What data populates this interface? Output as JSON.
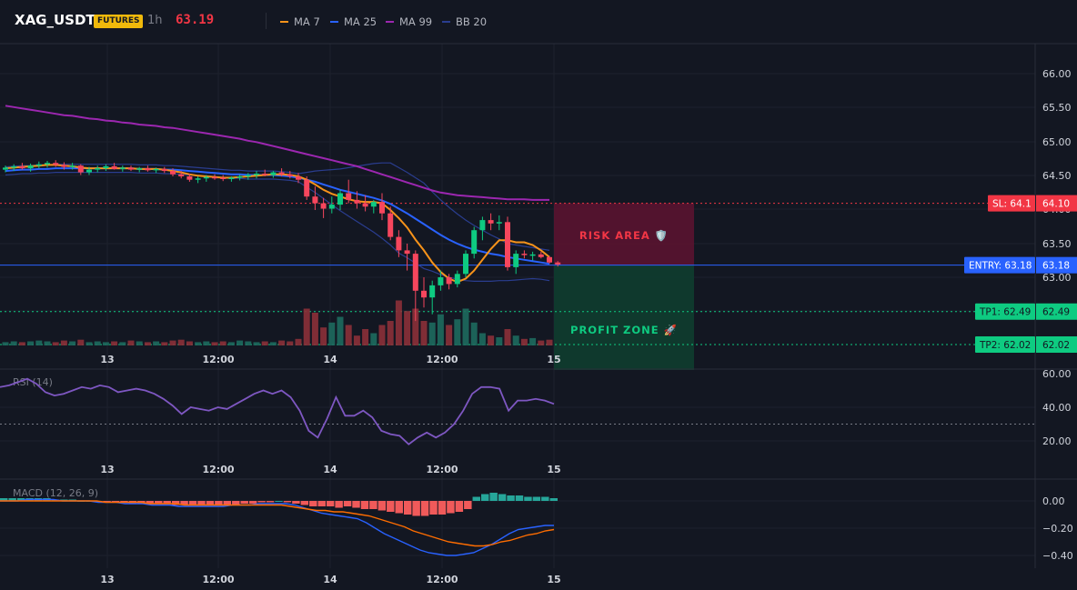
{
  "header": {
    "symbol": "XAG_USDT",
    "badge": "FUTURES",
    "interval": "1h",
    "price": "63.19"
  },
  "legend": [
    {
      "label": "MA 7",
      "color": "#f7931a"
    },
    {
      "label": "MA 25",
      "color": "#2962ff"
    },
    {
      "label": "MA 99",
      "color": "#9c27b0"
    },
    {
      "label": "BB 20",
      "color": "#2a3d8f"
    }
  ],
  "colors": {
    "up": "#26a69a",
    "down": "#ef5350",
    "candle_up": "#0ecb81",
    "candle_down": "#f6465d",
    "rsi": "#7e57c2",
    "macd": "#2962ff",
    "signal": "#ff6d00",
    "risk": "#f23645",
    "profit": "#089981"
  },
  "price_axis": [
    "66.00",
    "65.50",
    "65.00",
    "64.50",
    "64.00",
    "63.50",
    "63.00"
  ],
  "rsi_axis": [
    "60.00",
    "40.00",
    "20.00"
  ],
  "macd_axis": [
    "0.00",
    "−0.20",
    "−0.40"
  ],
  "time_axis": [
    "13",
    "12:00",
    "14",
    "12:00",
    "15"
  ],
  "indicators": {
    "rsi": "RSI (14)",
    "macd": "MACD (12, 26, 9)"
  },
  "zones": {
    "risk": "RISK AREA 🛡️",
    "profit": "PROFIT ZONE 🚀"
  },
  "levels": {
    "sl": {
      "label": "SL: 64.1",
      "price": "64.10",
      "value": 64.1
    },
    "entry": {
      "label": "ENTRY: 63.18",
      "price": "63.18",
      "value": 63.18
    },
    "tp1": {
      "label": "TP1: 62.49",
      "price": "62.49",
      "value": 62.49
    },
    "tp2": {
      "label": "TP2: 62.02",
      "price": "62.02",
      "value": 62.02
    }
  },
  "chart_data": {
    "type": "candlestick",
    "price_range": [
      62.0,
      66.2
    ],
    "candles": [
      {
        "o": 64.6,
        "h": 64.66,
        "l": 64.56,
        "c": 64.63
      },
      {
        "o": 64.63,
        "h": 64.68,
        "l": 64.58,
        "c": 64.65
      },
      {
        "o": 64.65,
        "h": 64.7,
        "l": 64.6,
        "c": 64.62
      },
      {
        "o": 64.62,
        "h": 64.69,
        "l": 64.57,
        "c": 64.66
      },
      {
        "o": 64.66,
        "h": 64.72,
        "l": 64.62,
        "c": 64.68
      },
      {
        "o": 64.68,
        "h": 64.73,
        "l": 64.63,
        "c": 64.7
      },
      {
        "o": 64.7,
        "h": 64.74,
        "l": 64.64,
        "c": 64.67
      },
      {
        "o": 64.67,
        "h": 64.71,
        "l": 64.6,
        "c": 64.64
      },
      {
        "o": 64.64,
        "h": 64.7,
        "l": 64.6,
        "c": 64.66
      },
      {
        "o": 64.66,
        "h": 64.68,
        "l": 64.52,
        "c": 64.56
      },
      {
        "o": 64.56,
        "h": 64.64,
        "l": 64.52,
        "c": 64.6
      },
      {
        "o": 64.6,
        "h": 64.66,
        "l": 64.56,
        "c": 64.62
      },
      {
        "o": 64.62,
        "h": 64.68,
        "l": 64.58,
        "c": 64.65
      },
      {
        "o": 64.65,
        "h": 64.7,
        "l": 64.6,
        "c": 64.61
      },
      {
        "o": 64.61,
        "h": 64.66,
        "l": 64.57,
        "c": 64.63
      },
      {
        "o": 64.63,
        "h": 64.66,
        "l": 64.58,
        "c": 64.6
      },
      {
        "o": 64.6,
        "h": 64.64,
        "l": 64.56,
        "c": 64.62
      },
      {
        "o": 64.62,
        "h": 64.66,
        "l": 64.57,
        "c": 64.59
      },
      {
        "o": 64.59,
        "h": 64.63,
        "l": 64.55,
        "c": 64.61
      },
      {
        "o": 64.61,
        "h": 64.64,
        "l": 64.55,
        "c": 64.58
      },
      {
        "o": 64.58,
        "h": 64.62,
        "l": 64.5,
        "c": 64.53
      },
      {
        "o": 64.53,
        "h": 64.58,
        "l": 64.47,
        "c": 64.5
      },
      {
        "o": 64.5,
        "h": 64.54,
        "l": 64.42,
        "c": 64.45
      },
      {
        "o": 64.45,
        "h": 64.5,
        "l": 64.4,
        "c": 64.47
      },
      {
        "o": 64.47,
        "h": 64.52,
        "l": 64.42,
        "c": 64.49
      },
      {
        "o": 64.49,
        "h": 64.53,
        "l": 64.45,
        "c": 64.48
      },
      {
        "o": 64.48,
        "h": 64.52,
        "l": 64.43,
        "c": 64.46
      },
      {
        "o": 64.46,
        "h": 64.5,
        "l": 64.42,
        "c": 64.48
      },
      {
        "o": 64.48,
        "h": 64.53,
        "l": 64.44,
        "c": 64.5
      },
      {
        "o": 64.5,
        "h": 64.55,
        "l": 64.45,
        "c": 64.52
      },
      {
        "o": 64.52,
        "h": 64.58,
        "l": 64.47,
        "c": 64.54
      },
      {
        "o": 64.54,
        "h": 64.6,
        "l": 64.5,
        "c": 64.52
      },
      {
        "o": 64.52,
        "h": 64.58,
        "l": 64.48,
        "c": 64.56
      },
      {
        "o": 64.56,
        "h": 64.62,
        "l": 64.5,
        "c": 64.53
      },
      {
        "o": 64.53,
        "h": 64.58,
        "l": 64.47,
        "c": 64.5
      },
      {
        "o": 64.5,
        "h": 64.55,
        "l": 64.4,
        "c": 64.45
      },
      {
        "o": 64.45,
        "h": 64.5,
        "l": 64.15,
        "c": 64.2
      },
      {
        "o": 64.2,
        "h": 64.35,
        "l": 64.0,
        "c": 64.1
      },
      {
        "o": 64.1,
        "h": 64.18,
        "l": 63.88,
        "c": 64.02
      },
      {
        "o": 64.02,
        "h": 64.2,
        "l": 63.95,
        "c": 64.08
      },
      {
        "o": 64.08,
        "h": 64.3,
        "l": 64.0,
        "c": 64.25
      },
      {
        "o": 64.25,
        "h": 64.45,
        "l": 64.1,
        "c": 64.15
      },
      {
        "o": 64.15,
        "h": 64.28,
        "l": 64.02,
        "c": 64.1
      },
      {
        "o": 64.1,
        "h": 64.22,
        "l": 63.98,
        "c": 64.05
      },
      {
        "o": 64.05,
        "h": 64.15,
        "l": 63.95,
        "c": 64.12
      },
      {
        "o": 64.12,
        "h": 64.25,
        "l": 63.85,
        "c": 63.95
      },
      {
        "o": 63.95,
        "h": 64.05,
        "l": 63.55,
        "c": 63.6
      },
      {
        "o": 63.6,
        "h": 63.7,
        "l": 63.3,
        "c": 63.4
      },
      {
        "o": 63.4,
        "h": 63.5,
        "l": 63.1,
        "c": 63.35
      },
      {
        "o": 63.35,
        "h": 63.4,
        "l": 62.35,
        "c": 62.8
      },
      {
        "o": 62.8,
        "h": 63.0,
        "l": 62.55,
        "c": 62.7
      },
      {
        "o": 62.7,
        "h": 62.95,
        "l": 62.45,
        "c": 62.88
      },
      {
        "o": 62.88,
        "h": 63.1,
        "l": 62.8,
        "c": 63.0
      },
      {
        "o": 63.0,
        "h": 63.05,
        "l": 62.82,
        "c": 62.9
      },
      {
        "o": 62.9,
        "h": 63.1,
        "l": 62.85,
        "c": 63.05
      },
      {
        "o": 63.05,
        "h": 63.4,
        "l": 63.0,
        "c": 63.35
      },
      {
        "o": 63.35,
        "h": 63.75,
        "l": 63.28,
        "c": 63.7
      },
      {
        "o": 63.7,
        "h": 63.9,
        "l": 63.55,
        "c": 63.85
      },
      {
        "o": 63.85,
        "h": 63.95,
        "l": 63.7,
        "c": 63.8
      },
      {
        "o": 63.8,
        "h": 63.92,
        "l": 63.7,
        "c": 63.82
      },
      {
        "o": 63.82,
        "h": 63.9,
        "l": 63.1,
        "c": 63.15
      },
      {
        "o": 63.15,
        "h": 63.4,
        "l": 63.05,
        "c": 63.35
      },
      {
        "o": 63.35,
        "h": 63.4,
        "l": 63.28,
        "c": 63.33
      },
      {
        "o": 63.33,
        "h": 63.38,
        "l": 63.25,
        "c": 63.34
      },
      {
        "o": 63.34,
        "h": 63.38,
        "l": 63.28,
        "c": 63.3
      },
      {
        "o": 63.3,
        "h": 63.32,
        "l": 63.2,
        "c": 63.22
      },
      {
        "o": 63.22,
        "h": 63.24,
        "l": 63.16,
        "c": 63.19
      }
    ],
    "volume": [
      4,
      5,
      4,
      5,
      6,
      5,
      4,
      6,
      5,
      7,
      4,
      5,
      4,
      5,
      4,
      6,
      5,
      4,
      5,
      4,
      6,
      7,
      5,
      4,
      5,
      4,
      5,
      4,
      6,
      5,
      4,
      5,
      4,
      6,
      5,
      8,
      45,
      40,
      22,
      28,
      35,
      25,
      12,
      20,
      15,
      25,
      30,
      55,
      42,
      45,
      30,
      28,
      38,
      25,
      32,
      45,
      28,
      15,
      12,
      10,
      20,
      12,
      8,
      9,
      6,
      7
    ],
    "ma7": [
      64.62,
      64.63,
      64.64,
      64.65,
      64.66,
      64.67,
      64.67,
      64.66,
      64.65,
      64.63,
      64.62,
      64.62,
      64.62,
      64.62,
      64.62,
      64.62,
      64.61,
      64.61,
      64.61,
      64.6,
      64.58,
      64.56,
      64.53,
      64.51,
      64.5,
      64.49,
      64.48,
      64.48,
      64.49,
      64.5,
      64.51,
      64.52,
      64.53,
      64.53,
      64.52,
      64.5,
      64.45,
      64.38,
      64.3,
      64.24,
      64.2,
      64.16,
      64.13,
      64.12,
      64.12,
      64.1,
      64.0,
      63.88,
      63.74,
      63.56,
      63.4,
      63.22,
      63.08,
      62.98,
      62.93,
      62.98,
      63.1,
      63.26,
      63.42,
      63.55,
      63.55,
      63.52,
      63.52,
      63.48,
      63.4,
      63.3
    ],
    "ma25": [
      64.58,
      64.59,
      64.6,
      64.6,
      64.61,
      64.61,
      64.62,
      64.62,
      64.62,
      64.62,
      64.62,
      64.62,
      64.62,
      64.62,
      64.62,
      64.62,
      64.61,
      64.61,
      64.61,
      64.6,
      64.6,
      64.59,
      64.58,
      64.57,
      64.56,
      64.55,
      64.54,
      64.53,
      64.53,
      64.52,
      64.52,
      64.52,
      64.52,
      64.51,
      64.5,
      64.48,
      64.45,
      64.42,
      64.38,
      64.34,
      64.3,
      64.27,
      64.24,
      64.21,
      64.18,
      64.14,
      64.09,
      64.02,
      63.95,
      63.87,
      63.79,
      63.71,
      63.63,
      63.56,
      63.5,
      63.45,
      63.41,
      63.38,
      63.35,
      63.33,
      63.3,
      63.28,
      63.26,
      63.24,
      63.22,
      63.2
    ],
    "ma99": [
      65.55,
      65.53,
      65.51,
      65.49,
      65.47,
      65.45,
      65.43,
      65.41,
      65.4,
      65.38,
      65.36,
      65.35,
      65.33,
      65.32,
      65.3,
      65.29,
      65.27,
      65.26,
      65.25,
      65.23,
      65.22,
      65.2,
      65.18,
      65.16,
      65.14,
      65.12,
      65.1,
      65.08,
      65.06,
      65.03,
      65.01,
      64.98,
      64.95,
      64.92,
      64.89,
      64.86,
      64.83,
      64.8,
      64.77,
      64.74,
      64.71,
      64.68,
      64.65,
      64.61,
      64.57,
      64.53,
      64.49,
      64.45,
      64.41,
      64.37,
      64.33,
      64.29,
      64.26,
      64.24,
      64.22,
      64.21,
      64.2,
      64.19,
      64.18,
      64.17,
      64.16,
      64.16,
      64.16,
      64.15,
      64.15,
      64.15
    ]
  },
  "rsi_data": [
    52,
    53,
    55,
    57,
    54,
    49,
    47,
    48,
    50,
    52,
    51,
    53,
    52,
    49,
    50,
    51,
    50,
    48,
    45,
    41,
    36,
    40,
    39,
    38,
    40,
    39,
    42,
    45,
    48,
    50,
    48,
    50,
    46,
    38,
    26,
    22,
    33,
    46,
    35,
    35,
    38,
    34,
    26,
    24,
    23,
    18,
    22,
    25,
    22,
    25,
    30,
    38,
    48,
    52,
    52,
    51,
    38,
    44,
    44,
    45,
    44,
    42
  ],
  "macd_data": {
    "hist": [
      0.02,
      0.02,
      0.02,
      0.02,
      0.02,
      0.02,
      0.01,
      0.01,
      0.01,
      0.0,
      0.0,
      -0.01,
      -0.01,
      -0.01,
      -0.01,
      -0.02,
      -0.02,
      -0.02,
      -0.02,
      -0.02,
      -0.03,
      -0.03,
      -0.03,
      -0.03,
      -0.03,
      -0.03,
      -0.03,
      -0.03,
      -0.02,
      -0.02,
      -0.01,
      -0.01,
      0.0,
      -0.01,
      -0.02,
      -0.03,
      -0.04,
      -0.04,
      -0.04,
      -0.05,
      -0.04,
      -0.05,
      -0.06,
      -0.06,
      -0.07,
      -0.08,
      -0.09,
      -0.1,
      -0.11,
      -0.11,
      -0.1,
      -0.1,
      -0.09,
      -0.08,
      -0.06,
      0.03,
      0.05,
      0.06,
      0.05,
      0.04,
      0.04,
      0.03,
      0.03,
      0.03,
      0.02
    ],
    "macd": [
      0.0,
      0.0,
      0.0,
      0.01,
      0.01,
      0.01,
      0.01,
      0.0,
      0.0,
      0.0,
      0.0,
      -0.01,
      -0.01,
      -0.01,
      -0.02,
      -0.02,
      -0.02,
      -0.03,
      -0.03,
      -0.03,
      -0.04,
      -0.04,
      -0.04,
      -0.04,
      -0.04,
      -0.04,
      -0.03,
      -0.03,
      -0.03,
      -0.02,
      -0.02,
      -0.02,
      -0.02,
      -0.03,
      -0.05,
      -0.07,
      -0.09,
      -0.1,
      -0.11,
      -0.12,
      -0.13,
      -0.16,
      -0.2,
      -0.24,
      -0.27,
      -0.3,
      -0.33,
      -0.36,
      -0.38,
      -0.39,
      -0.4,
      -0.4,
      -0.39,
      -0.38,
      -0.35,
      -0.32,
      -0.28,
      -0.24,
      -0.21,
      -0.2,
      -0.19,
      -0.18,
      -0.18
    ],
    "signal": [
      0.0,
      0.0,
      0.0,
      0.0,
      0.0,
      0.0,
      0.0,
      0.0,
      0.0,
      0.0,
      0.0,
      0.0,
      -0.01,
      -0.01,
      -0.01,
      -0.01,
      -0.01,
      -0.02,
      -0.02,
      -0.02,
      -0.02,
      -0.03,
      -0.03,
      -0.03,
      -0.03,
      -0.03,
      -0.03,
      -0.03,
      -0.03,
      -0.03,
      -0.03,
      -0.03,
      -0.03,
      -0.04,
      -0.05,
      -0.06,
      -0.07,
      -0.07,
      -0.08,
      -0.08,
      -0.09,
      -0.1,
      -0.11,
      -0.13,
      -0.15,
      -0.17,
      -0.19,
      -0.22,
      -0.24,
      -0.26,
      -0.28,
      -0.3,
      -0.31,
      -0.32,
      -0.33,
      -0.33,
      -0.32,
      -0.3,
      -0.29,
      -0.27,
      -0.25,
      -0.24,
      -0.22,
      -0.21
    ]
  }
}
